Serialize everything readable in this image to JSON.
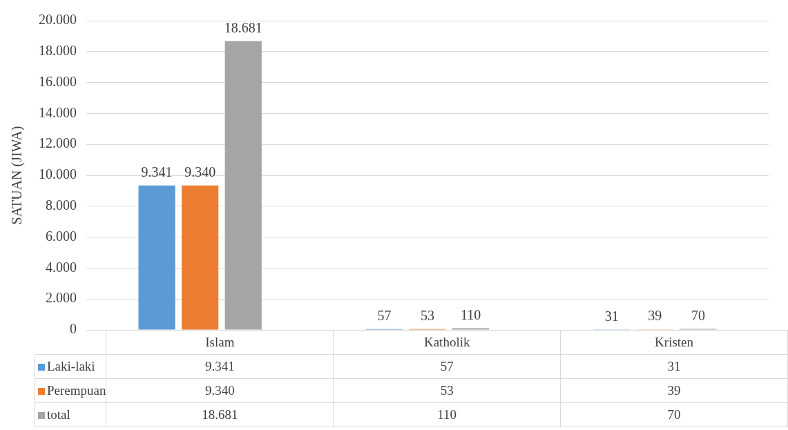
{
  "chart_data": {
    "type": "bar",
    "ylabel": "SATUAN (JIWA)",
    "categories": [
      "Islam",
      "Katholik",
      "Kristen"
    ],
    "series": [
      {
        "name": "Laki-laki",
        "color": "#5b9bd5",
        "values": [
          9341,
          57,
          31
        ],
        "value_labels": [
          "9.341",
          "57",
          "31"
        ]
      },
      {
        "name": "Perempuan",
        "color": "#ed7d31",
        "values": [
          9340,
          53,
          39
        ],
        "value_labels": [
          "9.340",
          "53",
          "39"
        ]
      },
      {
        "name": "total",
        "color": "#a5a5a5",
        "values": [
          18681,
          110,
          70
        ],
        "value_labels": [
          "18.681",
          "110",
          "70"
        ]
      }
    ],
    "ylim": [
      0,
      20000
    ],
    "yticks": [
      {
        "value": 0,
        "label": "0"
      },
      {
        "value": 2000,
        "label": "2.000"
      },
      {
        "value": 4000,
        "label": "4.000"
      },
      {
        "value": 6000,
        "label": "6.000"
      },
      {
        "value": 8000,
        "label": "8.000"
      },
      {
        "value": 10000,
        "label": "10.000"
      },
      {
        "value": 12000,
        "label": "12.000"
      },
      {
        "value": 14000,
        "label": "14.000"
      },
      {
        "value": 16000,
        "label": "16.000"
      },
      {
        "value": 18000,
        "label": "18.000"
      },
      {
        "value": 20000,
        "label": "20.000"
      }
    ],
    "grid": "y",
    "legend": "bottom"
  }
}
